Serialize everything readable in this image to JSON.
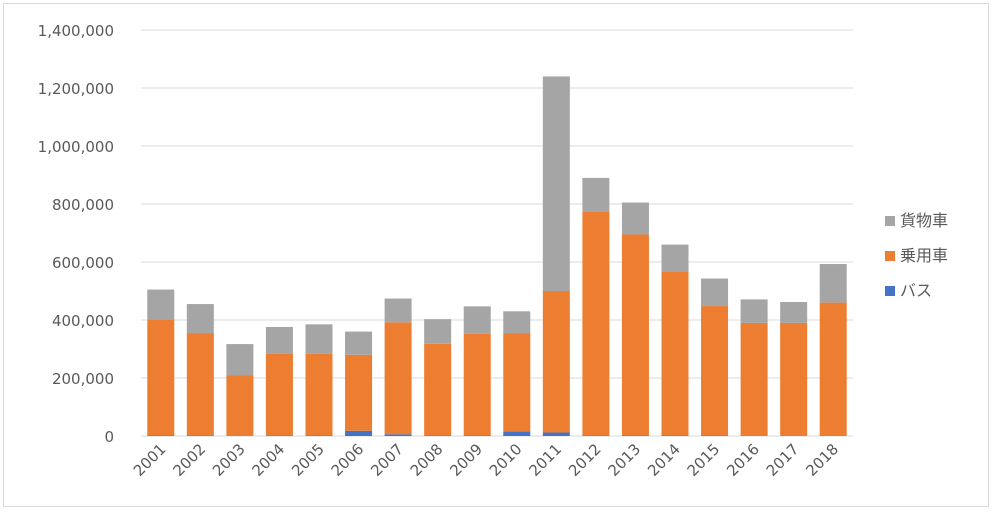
{
  "chart_data": {
    "type": "bar",
    "stacked": true,
    "title": "",
    "xlabel": "",
    "ylabel": "",
    "categories": [
      "2001",
      "2002",
      "2003",
      "2004",
      "2005",
      "2006",
      "2007",
      "2008",
      "2009",
      "2010",
      "2011",
      "2012",
      "2013",
      "2014",
      "2015",
      "2016",
      "2017",
      "2018"
    ],
    "series": [
      {
        "name": "バス",
        "color": "#4472c4",
        "values": [
          2000,
          1500,
          1000,
          1500,
          2000,
          18000,
          6000,
          2000,
          2000,
          16000,
          12000,
          1500,
          1500,
          1500,
          1500,
          1000,
          1000,
          1000
        ]
      },
      {
        "name": "乗用車",
        "color": "#ed7d31",
        "values": [
          398000,
          353500,
          209000,
          281500,
          281000,
          262000,
          386000,
          316000,
          350000,
          339000,
          488000,
          773500,
          693500,
          565500,
          446500,
          389000,
          389000,
          459000
        ]
      },
      {
        "name": "貨物車",
        "color": "#a5a5a5",
        "values": [
          105000,
          100000,
          107000,
          93000,
          102000,
          80000,
          82000,
          85000,
          95000,
          75000,
          740000,
          115000,
          110000,
          93000,
          95000,
          81000,
          72000,
          133000
        ]
      }
    ],
    "ylim": [
      0,
      1400000
    ],
    "yticks": [
      "0",
      "200,000",
      "400,000",
      "600,000",
      "800,000",
      "1,000,000",
      "1,200,000",
      "1,400,000"
    ],
    "legend_position": "right",
    "legend_order": [
      "貨物車",
      "乗用車",
      "バス"
    ],
    "grid": true,
    "gridline_color": "#d9d9d9"
  }
}
